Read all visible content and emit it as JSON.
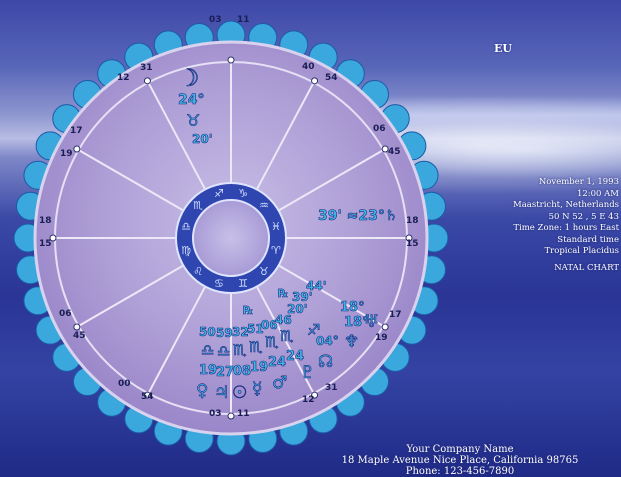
{
  "chart_title": "EU",
  "event": {
    "date": "November 1, 1993",
    "time": "12:00 AM",
    "place": "Maastricht, Netherlands",
    "coordinates": "50 N 52 , 5 E 43",
    "time_zone": "Time Zone: 1 hours East",
    "time_type": "Standard time",
    "house_system": "Tropical Placidus",
    "chart_type": "NATAL CHART"
  },
  "company": {
    "name": "Your Company Name",
    "address": "18 Maple Avenue  Nice Place, California 98765",
    "phone": "Phone: 123-456-7890"
  },
  "cusps": {
    "top": [
      "03",
      "11"
    ],
    "top_left": [
      "12",
      "31"
    ],
    "top_right": [
      "40",
      "54"
    ],
    "upper_left": [
      "17",
      "19"
    ],
    "upper_right": [
      "06",
      "45"
    ],
    "left": [
      "18",
      "15"
    ],
    "right": [
      "18",
      "15"
    ],
    "lower_left": [
      "06",
      "45"
    ],
    "lower_right": [
      "17",
      "19"
    ],
    "bottom_left": [
      "00",
      "54"
    ],
    "bottom_right": [
      "12",
      "31"
    ],
    "bottom": [
      "03",
      "11"
    ]
  },
  "planets": {
    "moon": {
      "glyph": "☽",
      "degree": "24°",
      "sign": "♉",
      "minute": "20'"
    },
    "saturn_group": {
      "text": "39' ≈23°♄"
    },
    "cluster": {
      "retro_marks": [
        "℞",
        "℞"
      ],
      "upper": [
        "44'",
        "39'",
        "18°",
        "20'",
        "18°",
        "04°"
      ],
      "minutes_row": [
        "50",
        "59",
        "32",
        "51",
        "06",
        "46"
      ],
      "signs_row": [
        "♎",
        "♎",
        "♏",
        "♏",
        "♏",
        "♏"
      ],
      "degrees_row": [
        "19",
        "27",
        "08",
        "19",
        "24",
        "24"
      ],
      "glyphs_row": [
        "♀",
        "♃",
        "☉",
        "☿",
        "♂",
        "♇",
        "☊"
      ],
      "outer_glyphs": [
        "♐",
        "♅",
        "♆"
      ]
    }
  },
  "zodiac_ring_glyphs": [
    "♈",
    "♉",
    "♊",
    "♋",
    "♌",
    "♍",
    "♎",
    "♏",
    "♐",
    "♑",
    "♒",
    "♓"
  ],
  "colors": {
    "glyph": "#3fb7e6",
    "ring_outer": "#3aa8dd",
    "wheel_fill": "#b4a9d9",
    "inner_ring": "#2f45b0"
  }
}
